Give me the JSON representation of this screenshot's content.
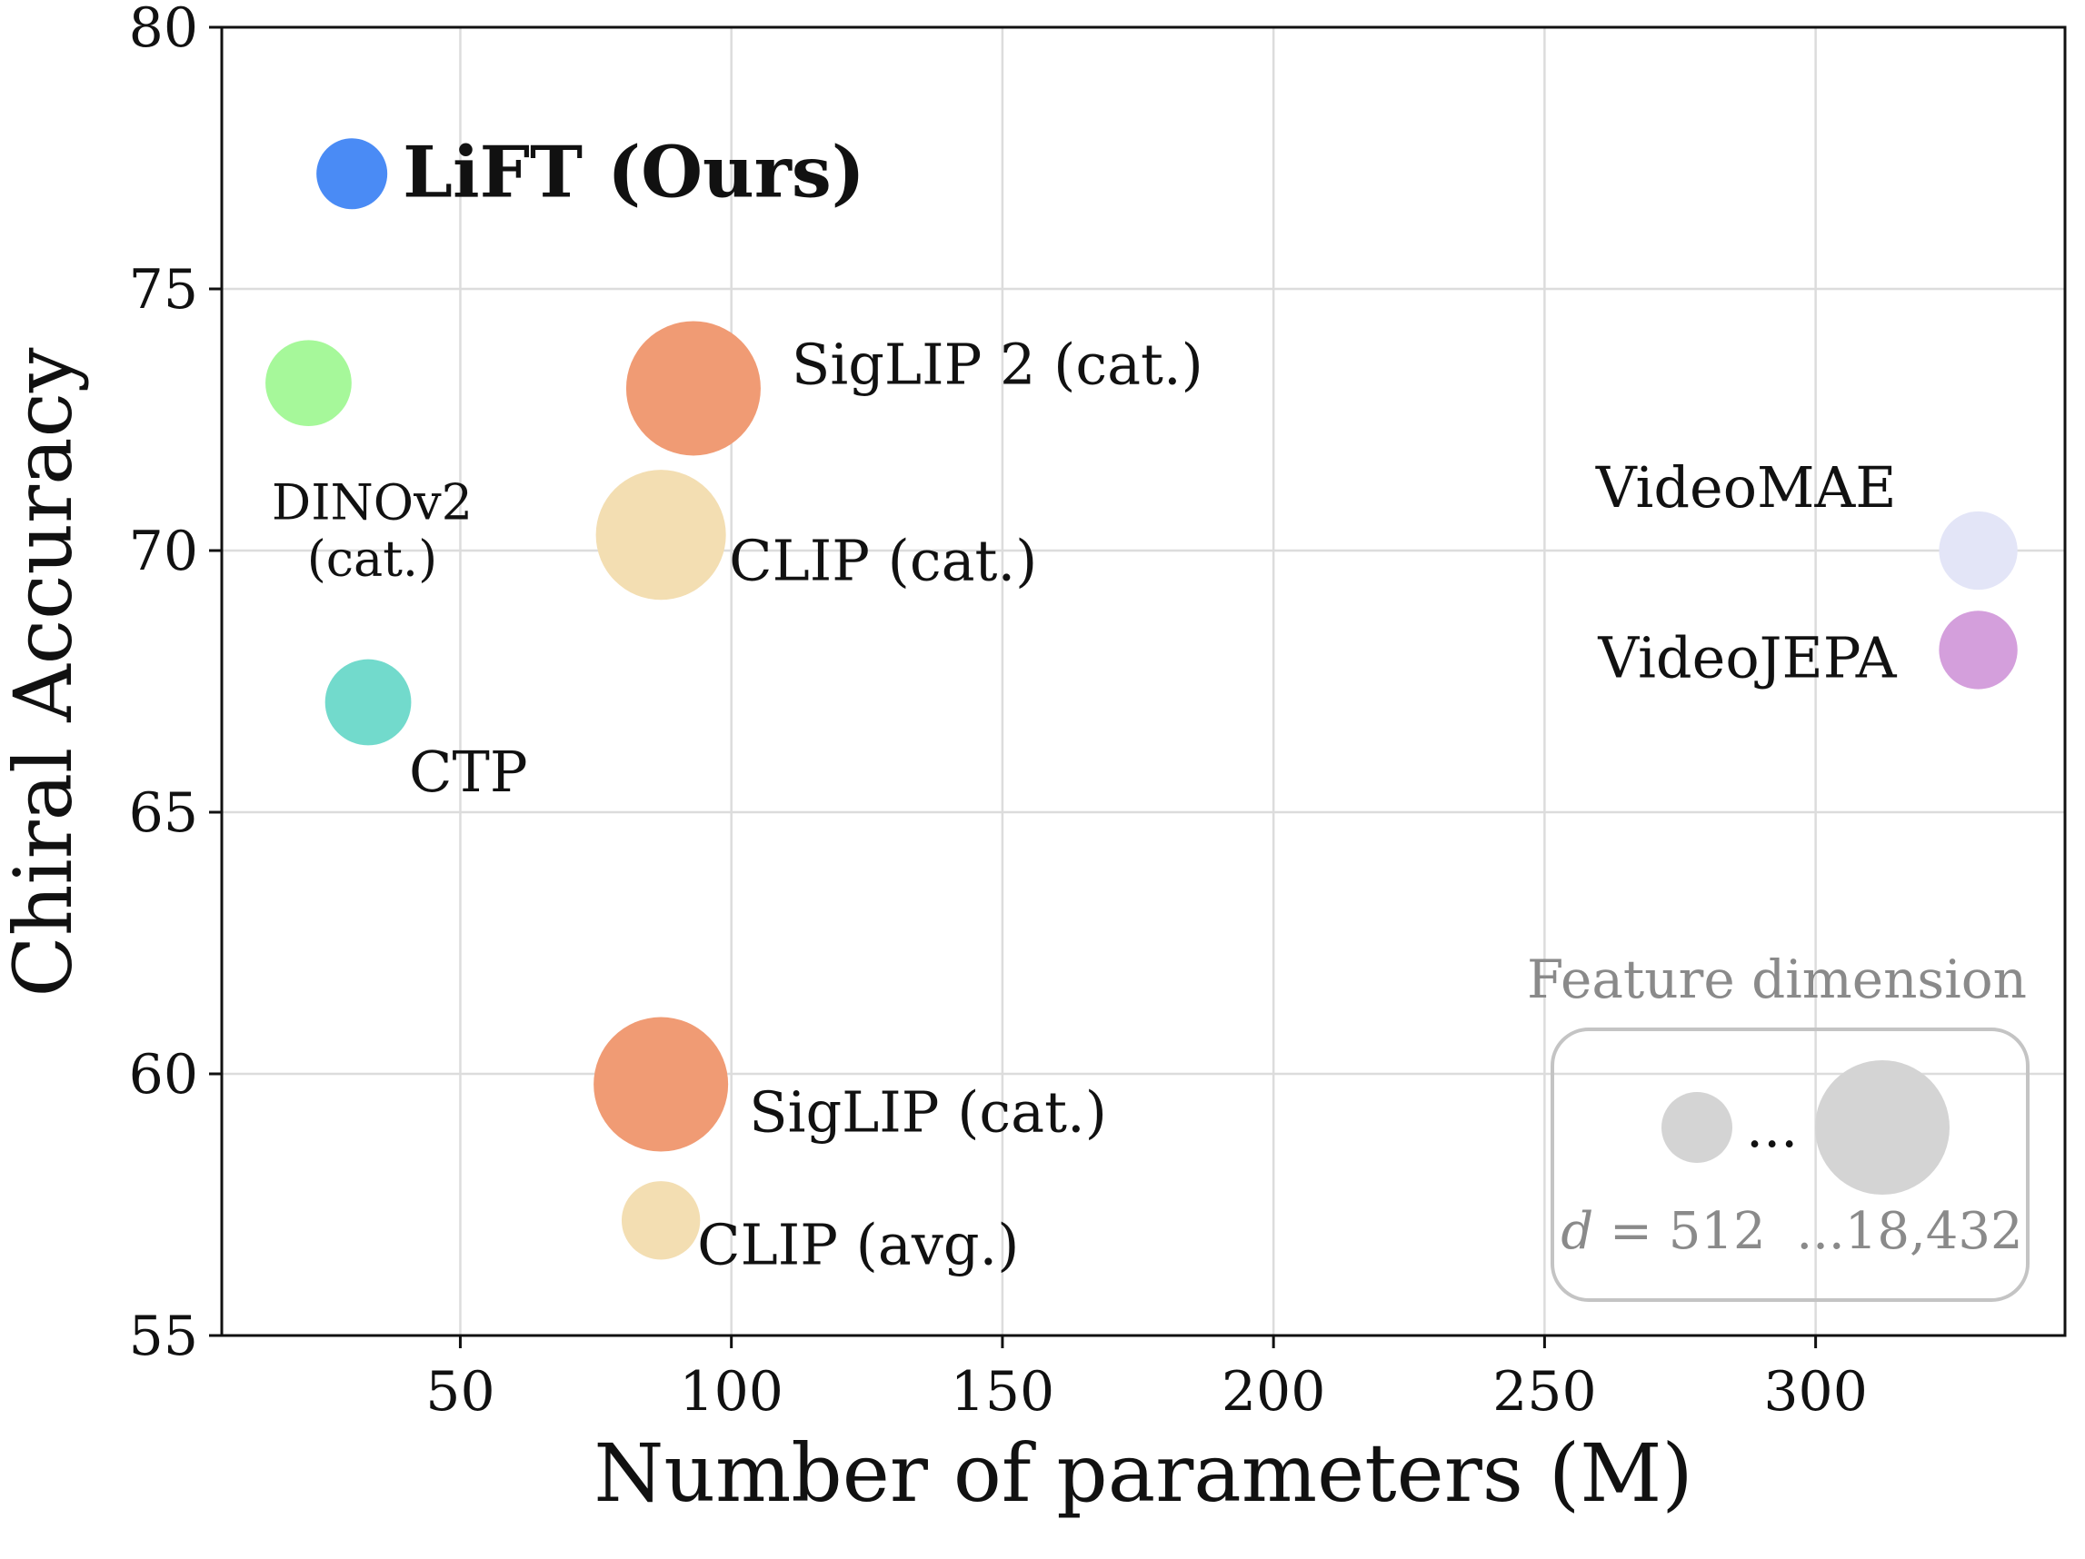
{
  "chart_data": {
    "type": "scatter",
    "title": "",
    "xlabel": "Number of parameters (M)",
    "ylabel": "Chiral Accuracy",
    "xlim": [
      6,
      346
    ],
    "ylim": [
      55,
      80
    ],
    "xticks": [
      50,
      100,
      150,
      200,
      250,
      300
    ],
    "yticks": [
      55,
      60,
      65,
      70,
      75,
      80
    ],
    "grid": true,
    "size_encoding": "Feature dimension",
    "points": [
      {
        "label": "LiFT (Ours)",
        "x": 30,
        "y": 77.2,
        "dim": 512,
        "color": "#4a8bf5",
        "bold": true
      },
      {
        "label": "DINOv2\n(cat.)",
        "x": 22,
        "y": 73.2,
        "dim": 1536,
        "color": "#a6f89a"
      },
      {
        "label": "SigLIP 2 (cat.)",
        "x": 93,
        "y": 73.1,
        "dim": 18432,
        "color": "#f09b74"
      },
      {
        "label": "CLIP (cat.)",
        "x": 87,
        "y": 70.3,
        "dim": 16000,
        "color": "#f3deb2"
      },
      {
        "label": "VideoMAE",
        "x": 330,
        "y": 70.0,
        "dim": 768,
        "color": "#e3e5f7"
      },
      {
        "label": "VideoJEPA",
        "x": 330,
        "y": 68.1,
        "dim": 768,
        "color": "#d49fdc"
      },
      {
        "label": "CTP",
        "x": 33,
        "y": 67.1,
        "dim": 1536,
        "color": "#72dacc"
      },
      {
        "label": "SigLIP (cat.)",
        "x": 87,
        "y": 59.8,
        "dim": 18432,
        "color": "#f09b74"
      },
      {
        "label": "CLIP (avg.)",
        "x": 87,
        "y": 57.2,
        "dim": 768,
        "color": "#f3deb2"
      }
    ],
    "legend": {
      "title": "Feature dimension",
      "placement": "bottom-right",
      "min_label": "d = 512",
      "max_label": "...18,432",
      "ellipsis": "...",
      "d_symbol": "d",
      "d_rest": " = 512",
      "min_dim": 512,
      "max_dim": 18432
    }
  }
}
